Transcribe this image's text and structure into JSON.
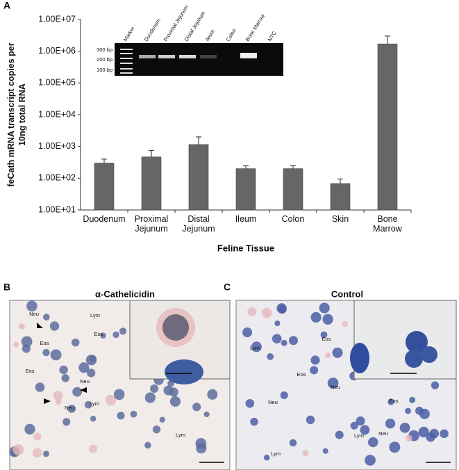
{
  "chart_data": {
    "type": "bar",
    "panel_label": "A",
    "ylabel": "feCath mRNA transcript copies per 10ng total RNA",
    "xlabel": "Feline Tissue",
    "log_scale": true,
    "categories": [
      "Duodenum",
      "Proximal Jejunum",
      "Distal Jejunum",
      "Ileum",
      "Colon",
      "Skin",
      "Bone Marrow"
    ],
    "values": [
      300,
      470,
      1150,
      200,
      200,
      68,
      1700000
    ],
    "errors": [
      100,
      280,
      850,
      45,
      50,
      27,
      1300000
    ],
    "color": "#666666",
    "ylim": [
      10,
      10000000
    ],
    "yticks": [
      {
        "value": 10,
        "label": "1.00E+01"
      },
      {
        "value": 100,
        "label": "1.00E+02"
      },
      {
        "value": 1000,
        "label": "1.00E+03"
      },
      {
        "value": 10000,
        "label": "1.00E+04"
      },
      {
        "value": 100000,
        "label": "1.00E+05"
      },
      {
        "value": 1000000,
        "label": "1.00E+06"
      },
      {
        "value": 10000000,
        "label": "1.00E+07"
      }
    ],
    "grid": false,
    "inset": {
      "lanes": [
        "Marker",
        "Duodenum",
        "Proximal Jejunum",
        "Distal Jejunum",
        "Ileum",
        "Colon",
        "Bone Marrow",
        "NTC"
      ],
      "sizes": [
        "300 bp",
        "200 bp",
        "100 bp"
      ]
    }
  },
  "panels": [
    {
      "label": "B",
      "title": "α-Cathelicidin",
      "cell_labels": [
        "Neu",
        "Lym",
        "Eos",
        "Eos",
        "Eos",
        "Neu",
        "Neu",
        "Lym",
        "Lym"
      ]
    },
    {
      "label": "C",
      "title": "Control",
      "cell_labels": [
        "Lym",
        "Eos",
        "Eos",
        "Neu",
        "Neu",
        "Eos",
        "Lym",
        "Neu",
        "Lym"
      ]
    }
  ]
}
